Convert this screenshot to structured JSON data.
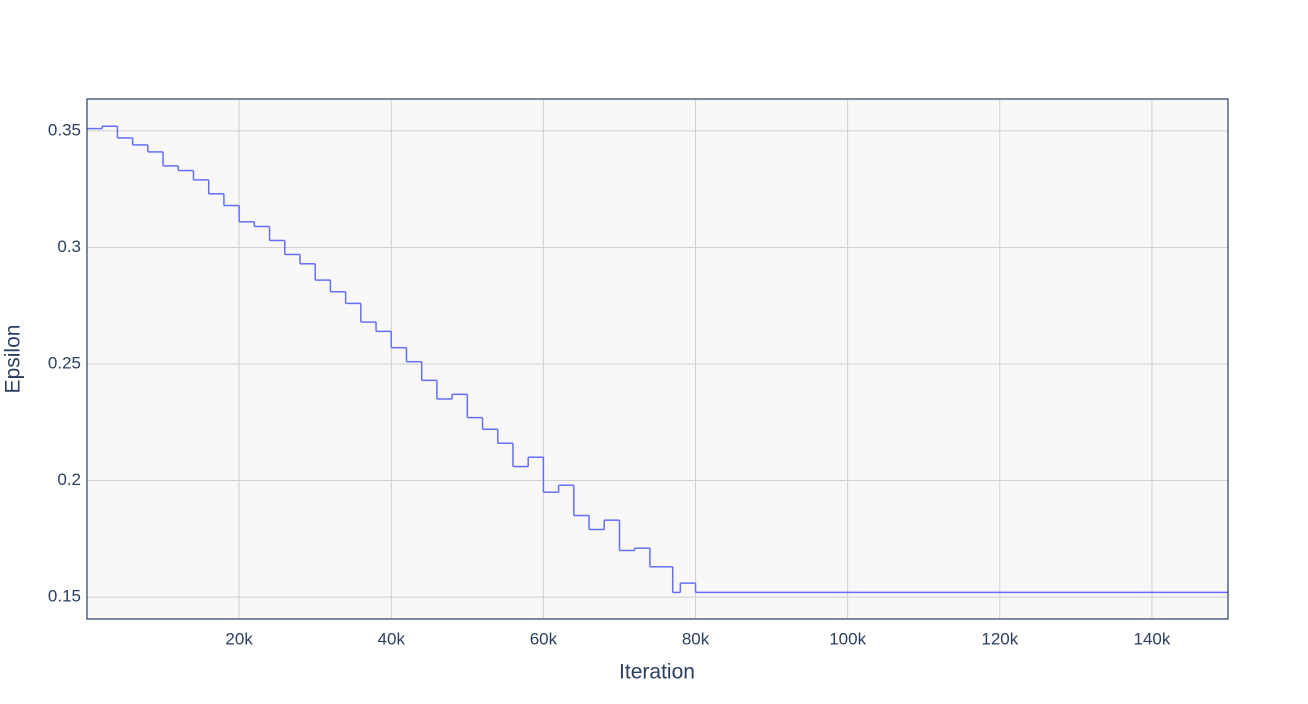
{
  "chart_data": {
    "type": "line",
    "line_shape": "hv",
    "xlabel": "Iteration",
    "ylabel": "Epsilon",
    "x": [
      0,
      2000,
      4000,
      6000,
      8000,
      10000,
      12000,
      14000,
      16000,
      18000,
      20000,
      22000,
      24000,
      26000,
      28000,
      30000,
      32000,
      34000,
      36000,
      38000,
      40000,
      42000,
      44000,
      46000,
      48000,
      50000,
      52000,
      54000,
      56000,
      58000,
      60000,
      62000,
      64000,
      66000,
      68000,
      70000,
      72000,
      74000,
      76000,
      77000,
      78000,
      80000,
      150000
    ],
    "series": [
      {
        "color": "#636efa",
        "values": [
          0.351,
          0.352,
          0.347,
          0.344,
          0.341,
          0.335,
          0.333,
          0.329,
          0.323,
          0.318,
          0.311,
          0.309,
          0.303,
          0.297,
          0.293,
          0.286,
          0.281,
          0.276,
          0.268,
          0.264,
          0.257,
          0.251,
          0.243,
          0.235,
          0.237,
          0.227,
          0.222,
          0.216,
          0.206,
          0.21,
          0.195,
          0.198,
          0.185,
          0.179,
          0.183,
          0.17,
          0.171,
          0.163,
          0.163,
          0.152,
          0.156,
          0.152,
          0.152
        ]
      }
    ],
    "xlim": [
      0,
      150000
    ],
    "xticks": [
      {
        "value": 20000,
        "label": "20k"
      },
      {
        "value": 40000,
        "label": "40k"
      },
      {
        "value": 60000,
        "label": "60k"
      },
      {
        "value": 80000,
        "label": "80k"
      },
      {
        "value": 100000,
        "label": "100k"
      },
      {
        "value": 120000,
        "label": "120k"
      },
      {
        "value": 140000,
        "label": "140k"
      }
    ],
    "ylim": [
      0.1406,
      0.3637
    ],
    "yticks": [
      0.15,
      0.2,
      0.25,
      0.3,
      0.35
    ],
    "grid": true
  }
}
